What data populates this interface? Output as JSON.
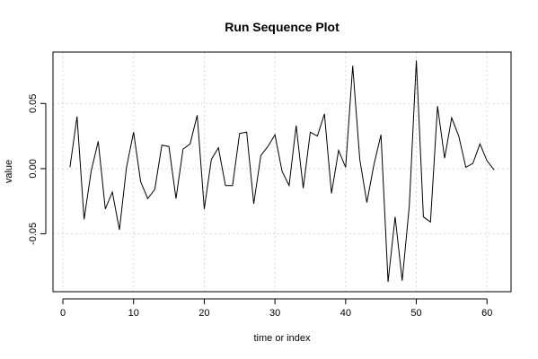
{
  "chart_data": {
    "type": "line",
    "title": "Run Sequence Plot",
    "xlabel": "time or index",
    "ylabel": "value",
    "xlim": [
      -1.4,
      63.4
    ],
    "ylim": [
      -0.0945,
      0.0895
    ],
    "x_ticks": [
      0,
      10,
      20,
      30,
      40,
      50,
      60
    ],
    "y_ticks": [
      -0.05,
      0.0,
      0.05
    ],
    "x_tick_labels": [
      "0",
      "10",
      "20",
      "30",
      "40",
      "50",
      "60"
    ],
    "y_tick_labels": [
      "-0.05",
      "0.00",
      "0.05"
    ],
    "grid": true,
    "series": [
      {
        "x": [
          1,
          2,
          3,
          4,
          5,
          6,
          7,
          8,
          9,
          10,
          11,
          12,
          13,
          14,
          15,
          16,
          17,
          18,
          19,
          20,
          21,
          22,
          23,
          24,
          25,
          26,
          27,
          28,
          29,
          30,
          31,
          32,
          33,
          34,
          35,
          36,
          37,
          38,
          39,
          40,
          41,
          42,
          43,
          44,
          45,
          46,
          47,
          48,
          49,
          50,
          51,
          52,
          53,
          54,
          55,
          56,
          57,
          58,
          59,
          60,
          61
        ],
        "values": [
          0.001,
          0.04,
          -0.039,
          -0.002,
          0.021,
          -0.031,
          -0.018,
          -0.047,
          0.001,
          0.028,
          -0.01,
          -0.023,
          -0.016,
          0.018,
          0.017,
          -0.023,
          0.015,
          0.019,
          0.041,
          -0.031,
          0.007,
          0.016,
          -0.013,
          -0.013,
          0.027,
          0.028,
          -0.027,
          0.01,
          0.017,
          0.026,
          -0.002,
          -0.013,
          0.033,
          -0.015,
          0.028,
          0.025,
          0.042,
          -0.019,
          0.014,
          0.001,
          0.079,
          0.007,
          -0.026,
          0.003,
          0.026,
          -0.087,
          -0.037,
          -0.086,
          -0.029,
          0.083,
          -0.037,
          -0.041,
          0.048,
          0.008,
          0.039,
          0.025,
          0.001,
          0.004,
          0.019,
          0.006,
          -0.001
        ]
      }
    ]
  }
}
